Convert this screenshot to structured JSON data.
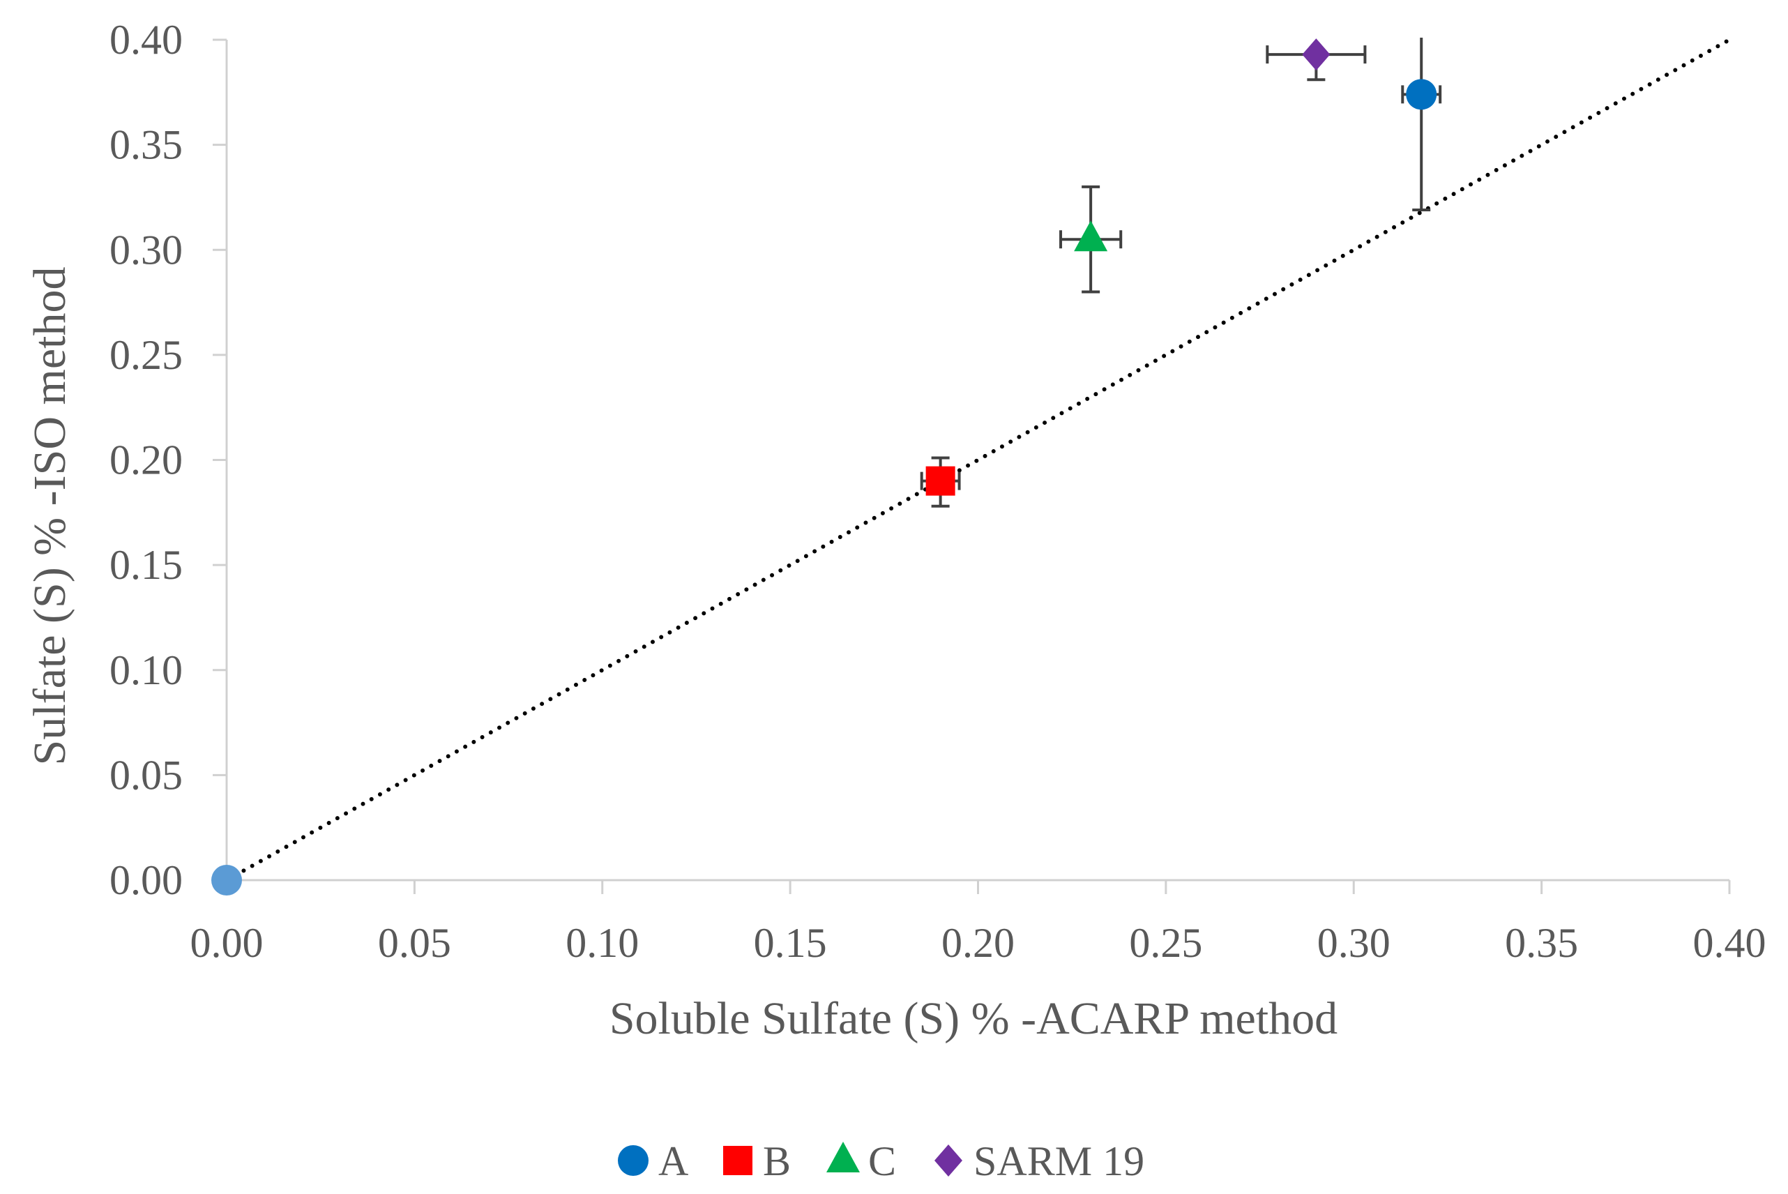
{
  "chart_data": {
    "type": "scatter",
    "title": "",
    "xlabel": "Soluble Sulfate (S) % -ACARP method",
    "ylabel": "Sulfate (S) % -ISO method",
    "xlim": [
      0,
      0.4
    ],
    "ylim": [
      0,
      0.4
    ],
    "x_ticks": [
      "0.00",
      "0.05",
      "0.10",
      "0.15",
      "0.20",
      "0.25",
      "0.30",
      "0.35",
      "0.40"
    ],
    "y_ticks": [
      "0.00",
      "0.05",
      "0.10",
      "0.15",
      "0.20",
      "0.25",
      "0.30",
      "0.35",
      "0.40"
    ],
    "grid": false,
    "legend_position": "bottom",
    "series": [
      {
        "name": "A",
        "marker": "circle",
        "color": "#0070C0",
        "points": [
          {
            "x": 0.318,
            "y": 0.374,
            "xerr": 0.005,
            "yerr_plus": 0.027,
            "yerr_minus": 0.055
          }
        ]
      },
      {
        "name": "B",
        "marker": "square",
        "color": "#FF0000",
        "points": [
          {
            "x": 0.19,
            "y": 0.19,
            "xerr": 0.005,
            "yerr_plus": 0.011,
            "yerr_minus": 0.012
          }
        ]
      },
      {
        "name": "C",
        "marker": "triangle",
        "color": "#00B050",
        "points": [
          {
            "x": 0.23,
            "y": 0.305,
            "xerr": 0.008,
            "yerr_plus": 0.025,
            "yerr_minus": 0.025
          }
        ]
      },
      {
        "name": "SARM 19",
        "marker": "diamond",
        "color": "#7030A0",
        "points": [
          {
            "x": 0.29,
            "y": 0.393,
            "xerr": 0.013,
            "yerr_plus": 0.0,
            "yerr_minus": 0.012
          }
        ]
      }
    ],
    "extra_points": [
      {
        "x": 0.0,
        "y": 0.0,
        "marker": "circle",
        "color": "#5B9BD5"
      }
    ],
    "reference_line": {
      "style": "dotted",
      "color": "#000000",
      "from": [
        0,
        0
      ],
      "to": [
        0.4,
        0.4
      ]
    }
  }
}
